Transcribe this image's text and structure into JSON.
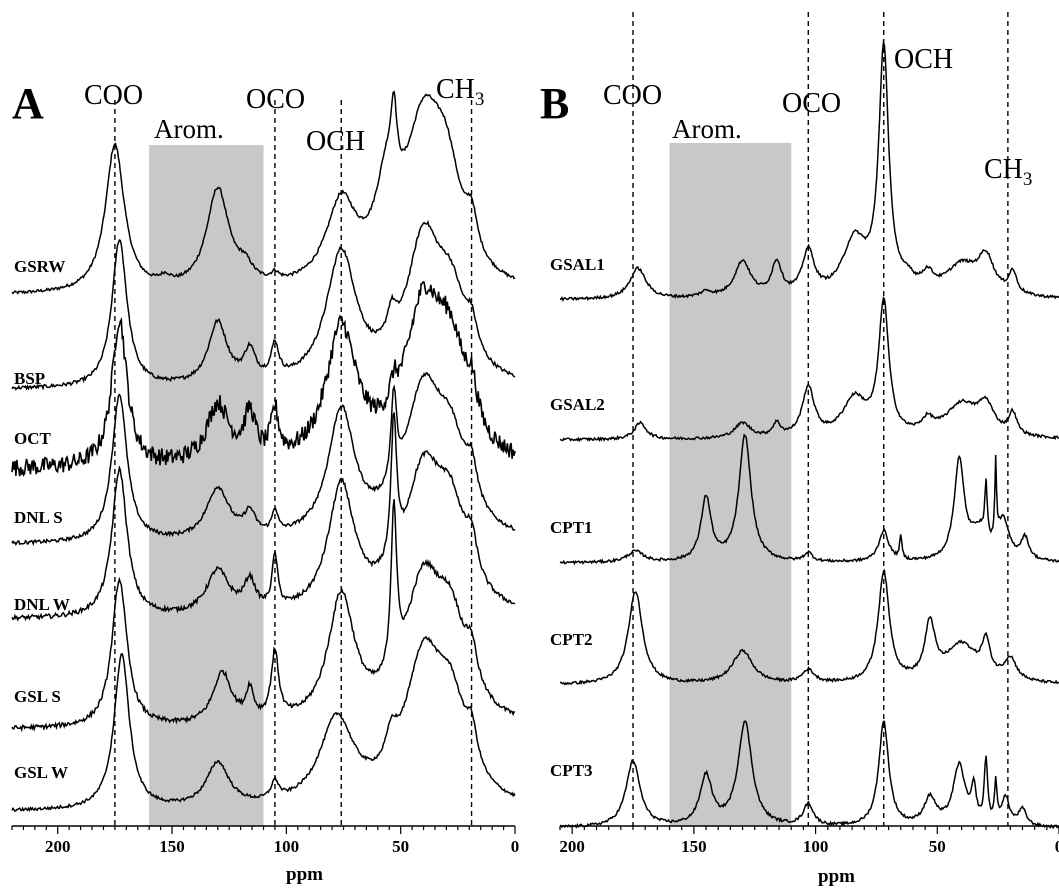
{
  "chart_data": [
    {
      "type": "line",
      "panel": "A",
      "xlabel": "ppm",
      "xlim": [
        220,
        0
      ],
      "xticks": [
        "200",
        "150",
        "100",
        "50",
        "0"
      ],
      "shaded_region": {
        "label": "Arom.",
        "range": [
          160,
          110
        ]
      },
      "reference_lines": [
        {
          "label": "COO",
          "ppm": 175
        },
        {
          "label": "OCO",
          "ppm": 105
        },
        {
          "label": "OCH",
          "ppm": 76
        },
        {
          "label": "CH",
          "sub": "3",
          "ppm": 19
        }
      ],
      "series": [
        {
          "name": "GSRW",
          "peaks": [
            [
              175,
              1.0,
              5
            ],
            [
              153,
              0.05,
              3
            ],
            [
              130,
              0.68,
              6
            ],
            [
              118,
              0.1,
              4
            ],
            [
              105,
              0.05,
              2
            ],
            [
              76,
              0.55,
              8
            ],
            [
              56,
              0.55,
              6
            ],
            [
              53,
              0.45,
              1.5
            ],
            [
              40,
              1.0,
              10
            ],
            [
              30,
              0.6,
              8
            ],
            [
              19,
              0.25,
              3
            ]
          ],
          "noise": 0.01
        },
        {
          "name": "BSP",
          "peaks": [
            [
              173,
              1.0,
              4
            ],
            [
              130,
              0.42,
              5
            ],
            [
              116,
              0.2,
              3
            ],
            [
              105,
              0.22,
              2
            ],
            [
              76,
              0.88,
              8
            ],
            [
              54,
              0.2,
              2.5
            ],
            [
              40,
              0.92,
              9
            ],
            [
              28,
              0.5,
              8
            ],
            [
              19,
              0.2,
              3
            ]
          ],
          "noise": 0.012
        },
        {
          "name": "OCT",
          "peaks": [
            [
              173,
              1.0,
              4
            ],
            [
              130,
              0.4,
              6
            ],
            [
              116,
              0.3,
              3
            ],
            [
              105,
              0.3,
              2
            ],
            [
              76,
              0.9,
              8
            ],
            [
              53,
              0.15,
              2
            ],
            [
              40,
              1.0,
              10
            ],
            [
              28,
              0.6,
              8
            ],
            [
              19,
              0.25,
              3
            ]
          ],
          "noise": 0.06
        },
        {
          "name": "DNL S",
          "peaks": [
            [
              173,
              1.0,
              4
            ],
            [
              130,
              0.35,
              6
            ],
            [
              116,
              0.15,
              3
            ],
            [
              105,
              0.15,
              1.5
            ],
            [
              76,
              0.85,
              7
            ],
            [
              53,
              0.6,
              1.5
            ],
            [
              40,
              0.95,
              10
            ],
            [
              28,
              0.5,
              8
            ],
            [
              19,
              0.25,
              3
            ]
          ],
          "noise": 0.012
        },
        {
          "name": "DNL W",
          "peaks": [
            [
              173,
              1.0,
              4
            ],
            [
              130,
              0.3,
              6
            ],
            [
              116,
              0.2,
              3
            ],
            [
              105,
              0.35,
              1.5
            ],
            [
              76,
              0.85,
              7
            ],
            [
              53,
              0.95,
              1.5
            ],
            [
              40,
              0.9,
              10
            ],
            [
              28,
              0.55,
              8
            ],
            [
              19,
              0.25,
              3
            ]
          ],
          "noise": 0.015
        },
        {
          "name": "GSL S",
          "peaks": [
            [
              173,
              1.0,
              4
            ],
            [
              128,
              0.35,
              5
            ],
            [
              116,
              0.2,
              2
            ],
            [
              105,
              0.45,
              2
            ],
            [
              76,
              0.85,
              7
            ],
            [
              53,
              1.1,
              1.5
            ],
            [
              40,
              0.9,
              10
            ],
            [
              28,
              0.55,
              8
            ],
            [
              19,
              0.25,
              3
            ]
          ],
          "noise": 0.015
        },
        {
          "name": "GSL W",
          "peaks": [
            [
              172,
              1.05,
              4
            ],
            [
              130,
              0.3,
              6
            ],
            [
              105,
              0.12,
              2
            ],
            [
              78,
              0.58,
              9
            ],
            [
              54,
              0.2,
              3
            ],
            [
              40,
              0.95,
              10
            ],
            [
              28,
              0.55,
              8
            ],
            [
              19,
              0.25,
              3
            ]
          ],
          "noise": 0.01
        }
      ]
    },
    {
      "type": "line",
      "panel": "B",
      "xlabel": "ppm",
      "xlim": [
        205,
        0
      ],
      "xticks": [
        "200",
        "150",
        "100",
        "50",
        "0"
      ],
      "shaded_region": {
        "label": "Arom.",
        "range": [
          160,
          110
        ]
      },
      "reference_lines": [
        {
          "label": "COO",
          "ppm": 175
        },
        {
          "label": "OCO",
          "ppm": 103
        },
        {
          "label": "OCH",
          "ppm": 72
        },
        {
          "label": "CH",
          "sub": "3",
          "ppm": 21
        }
      ],
      "series": [
        {
          "name": "GSAL1",
          "peaks": [
            [
              173,
              0.28,
              4
            ],
            [
              145,
              0.05,
              3
            ],
            [
              130,
              0.33,
              4
            ],
            [
              116,
              0.3,
              2.5
            ],
            [
              103,
              0.4,
              3
            ],
            [
              84,
              0.5,
              6
            ],
            [
              72,
              2.2,
              2.5
            ],
            [
              62,
              0.1,
              3
            ],
            [
              54,
              0.15,
              3
            ],
            [
              40,
              0.28,
              8
            ],
            [
              30,
              0.32,
              4
            ],
            [
              19,
              0.2,
              2
            ]
          ],
          "noise": 0.012
        },
        {
          "name": "GSAL2",
          "peaks": [
            [
              172,
              0.15,
              3
            ],
            [
              130,
              0.14,
              4
            ],
            [
              116,
              0.12,
              2
            ],
            [
              103,
              0.45,
              3
            ],
            [
              84,
              0.35,
              6
            ],
            [
              72,
              1.2,
              2.5
            ],
            [
              54,
              0.12,
              3
            ],
            [
              40,
              0.3,
              8
            ],
            [
              30,
              0.25,
              4
            ],
            [
              19,
              0.2,
              2
            ]
          ],
          "noise": 0.012
        },
        {
          "name": "CPT1",
          "peaks": [
            [
              174,
              0.1,
              4
            ],
            [
              145,
              0.58,
              2.5
            ],
            [
              129,
              1.15,
              3
            ],
            [
              103,
              0.08,
              2
            ],
            [
              72,
              0.28,
              2.5
            ],
            [
              65,
              0.2,
              0.6
            ],
            [
              41,
              0.9,
              2.5
            ],
            [
              33,
              0.25,
              4
            ],
            [
              30,
              0.5,
              0.6
            ],
            [
              26,
              0.7,
              0.4
            ],
            [
              23,
              0.35,
              3
            ],
            [
              14,
              0.2,
              2
            ]
          ],
          "noise": 0.012
        },
        {
          "name": "CPT2",
          "peaks": [
            [
              174,
              0.85,
              3.5
            ],
            [
              130,
              0.3,
              5
            ],
            [
              103,
              0.12,
              3
            ],
            [
              72,
              1.0,
              2.8
            ],
            [
              53,
              0.5,
              2.5
            ],
            [
              40,
              0.35,
              8
            ],
            [
              30,
              0.3,
              2
            ],
            [
              20,
              0.2,
              3
            ]
          ],
          "noise": 0.012
        },
        {
          "name": "CPT3",
          "peaks": [
            [
              175,
              0.6,
              3.5
            ],
            [
              145,
              0.45,
              3
            ],
            [
              129,
              0.95,
              3.5
            ],
            [
              103,
              0.2,
              2.5
            ],
            [
              72,
              0.95,
              2.5
            ],
            [
              53,
              0.25,
              3
            ],
            [
              41,
              0.55,
              3
            ],
            [
              35,
              0.3,
              1.2
            ],
            [
              30,
              0.58,
              0.8
            ],
            [
              26,
              0.35,
              0.6
            ],
            [
              22,
              0.25,
              2
            ],
            [
              15,
              0.15,
              2
            ]
          ],
          "noise": 0.012
        }
      ]
    }
  ]
}
